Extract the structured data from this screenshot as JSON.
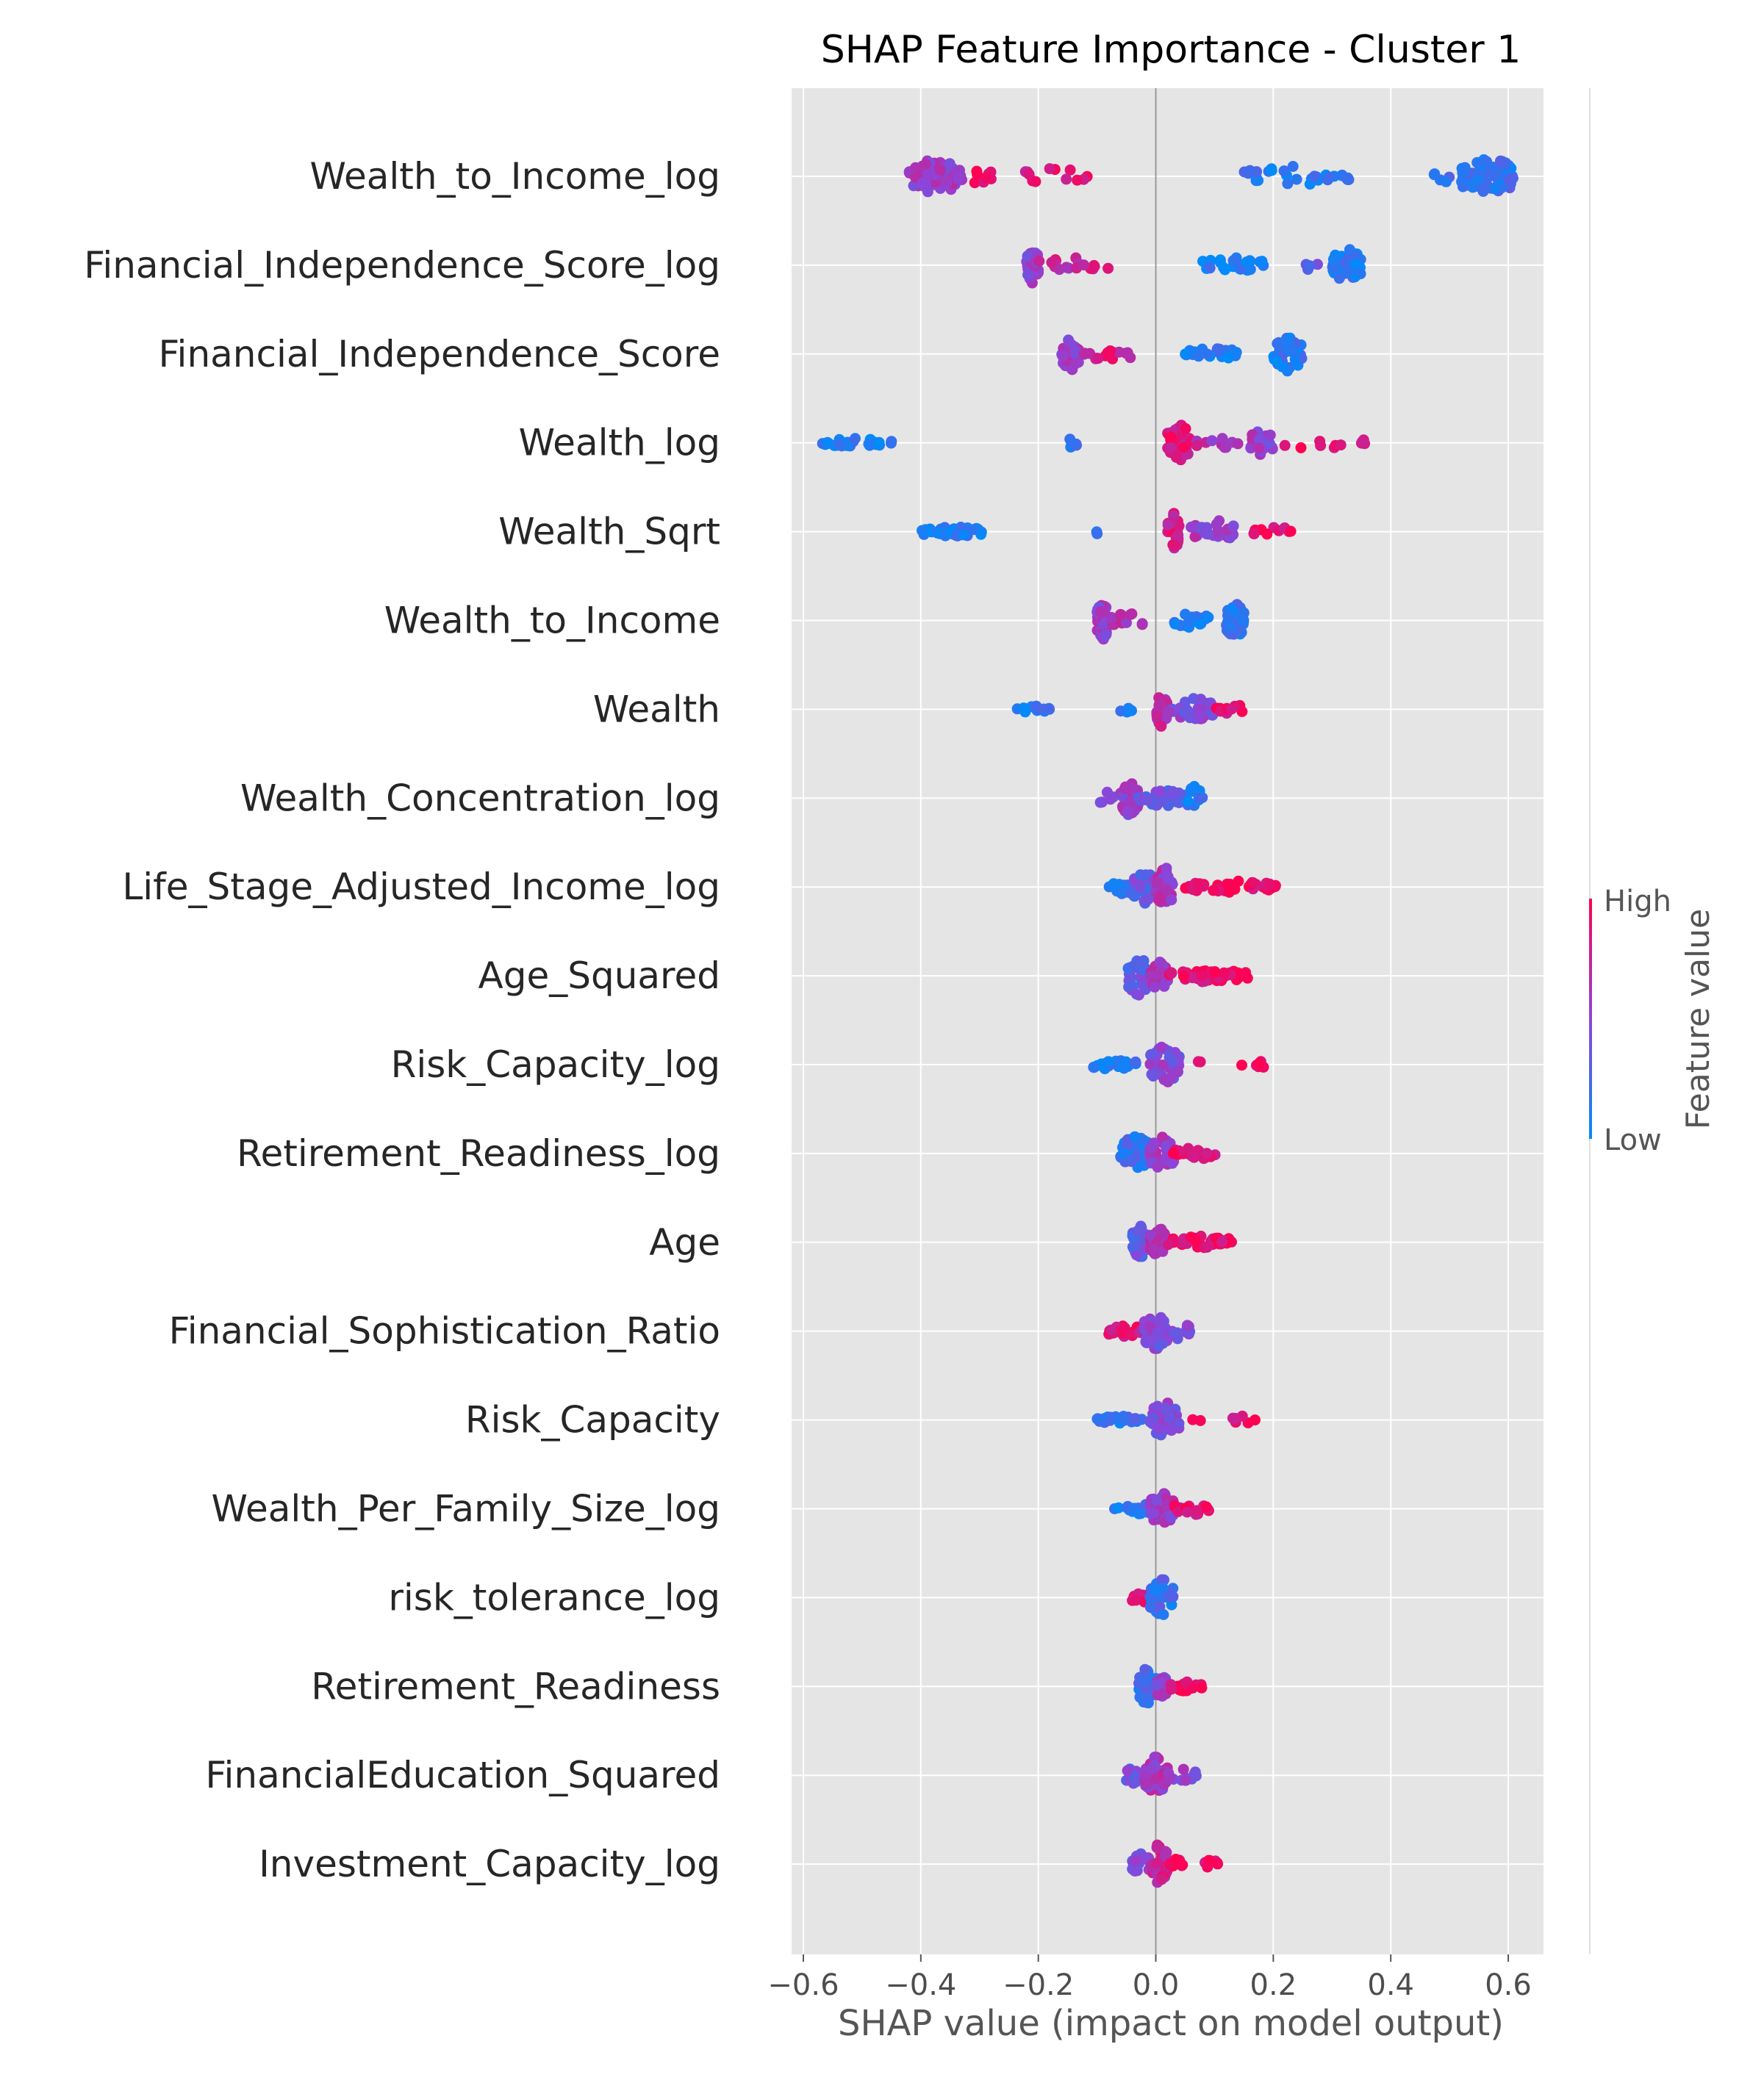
{
  "chart_data": {
    "type": "scatter",
    "subtype": "shap-beeswarm",
    "title": "SHAP Feature Importance - Cluster 1",
    "xlabel": "SHAP value (impact on model output)",
    "xlim": [
      -0.62,
      0.66
    ],
    "xticks": [
      -0.6,
      -0.4,
      -0.2,
      0.0,
      0.2,
      0.4,
      0.6
    ],
    "xtick_labels": [
      "−0.6",
      "−0.4",
      "−0.2",
      "0.0",
      "0.2",
      "0.4",
      "0.6"
    ],
    "grid": true,
    "background": "#e5e5e5",
    "colorbar": {
      "title": "Feature value",
      "high_label": "High",
      "low_label": "Low",
      "high_color": "#ff0052",
      "low_color": "#008bfb"
    },
    "features": [
      {
        "name": "Wealth_to_Income_log",
        "clusters": [
          {
            "x": [
              -0.42,
              -0.33
            ],
            "n": 70,
            "v": 0.55,
            "w": 0.42
          },
          {
            "x": [
              -0.32,
              -0.28
            ],
            "n": 8,
            "v": 0.9,
            "w": 0.2
          },
          {
            "x": [
              -0.25,
              -0.11
            ],
            "n": 12,
            "v": 0.85,
            "w": 0.2
          },
          {
            "x": [
              0.15,
              0.33
            ],
            "n": 30,
            "v": 0.12,
            "w": 0.25
          },
          {
            "x": [
              0.47,
              0.52
            ],
            "n": 5,
            "v": 0.25,
            "w": 0.15
          },
          {
            "x": [
              0.52,
              0.61
            ],
            "n": 60,
            "v": 0.18,
            "w": 0.48
          }
        ]
      },
      {
        "name": "Financial_Independence_Score_log",
        "clusters": [
          {
            "x": [
              -0.22,
              -0.2
            ],
            "n": 40,
            "v": 0.5,
            "w": 0.42
          },
          {
            "x": [
              -0.2,
              -0.07
            ],
            "n": 18,
            "v": 0.75,
            "w": 0.18
          },
          {
            "x": [
              0.08,
              0.19
            ],
            "n": 25,
            "v": 0.1,
            "w": 0.18
          },
          {
            "x": [
              0.25,
              0.28
            ],
            "n": 4,
            "v": 0.3,
            "w": 0.15
          },
          {
            "x": [
              0.3,
              0.35
            ],
            "n": 55,
            "v": 0.12,
            "w": 0.4
          }
        ]
      },
      {
        "name": "Financial_Independence_Score",
        "clusters": [
          {
            "x": [
              -0.16,
              -0.13
            ],
            "n": 40,
            "v": 0.55,
            "w": 0.42
          },
          {
            "x": [
              -0.13,
              -0.03
            ],
            "n": 15,
            "v": 0.8,
            "w": 0.15
          },
          {
            "x": [
              0.05,
              0.14
            ],
            "n": 22,
            "v": 0.1,
            "w": 0.15
          },
          {
            "x": [
              0.2,
              0.25
            ],
            "n": 45,
            "v": 0.12,
            "w": 0.4
          }
        ]
      },
      {
        "name": "Wealth_log",
        "clusters": [
          {
            "x": [
              -0.57,
              -0.45
            ],
            "n": 30,
            "v": 0.1,
            "w": 0.1
          },
          {
            "x": [
              -0.16,
              -0.13
            ],
            "n": 6,
            "v": 0.15,
            "w": 0.1
          },
          {
            "x": [
              0.02,
              0.06
            ],
            "n": 45,
            "v": 0.85,
            "w": 0.45
          },
          {
            "x": [
              0.06,
              0.14
            ],
            "n": 10,
            "v": 0.65,
            "w": 0.15
          },
          {
            "x": [
              0.16,
              0.2
            ],
            "n": 20,
            "v": 0.55,
            "w": 0.3
          },
          {
            "x": [
              0.2,
              0.36
            ],
            "n": 12,
            "v": 0.9,
            "w": 0.15
          }
        ]
      },
      {
        "name": "Wealth_Sqrt",
        "clusters": [
          {
            "x": [
              -0.4,
              -0.29
            ],
            "n": 35,
            "v": 0.1,
            "w": 0.12
          },
          {
            "x": [
              -0.11,
              -0.09
            ],
            "n": 2,
            "v": 0.1,
            "w": 0.1
          },
          {
            "x": [
              0.02,
              0.04
            ],
            "n": 35,
            "v": 0.8,
            "w": 0.45
          },
          {
            "x": [
              0.06,
              0.14
            ],
            "n": 25,
            "v": 0.55,
            "w": 0.28
          },
          {
            "x": [
              0.16,
              0.24
            ],
            "n": 12,
            "v": 0.9,
            "w": 0.12
          }
        ]
      },
      {
        "name": "Wealth_to_Income",
        "clusters": [
          {
            "x": [
              -0.1,
              -0.08
            ],
            "n": 40,
            "v": 0.55,
            "w": 0.45
          },
          {
            "x": [
              -0.08,
              -0.02
            ],
            "n": 12,
            "v": 0.6,
            "w": 0.2
          },
          {
            "x": [
              0.03,
              0.09
            ],
            "n": 20,
            "v": 0.15,
            "w": 0.18
          },
          {
            "x": [
              0.12,
              0.15
            ],
            "n": 45,
            "v": 0.15,
            "w": 0.45
          }
        ]
      },
      {
        "name": "Wealth",
        "clusters": [
          {
            "x": [
              -0.24,
              -0.18
            ],
            "n": 15,
            "v": 0.1,
            "w": 0.08
          },
          {
            "x": [
              -0.07,
              -0.04
            ],
            "n": 5,
            "v": 0.1,
            "w": 0.08
          },
          {
            "x": [
              0.0,
              0.02
            ],
            "n": 35,
            "v": 0.7,
            "w": 0.42
          },
          {
            "x": [
              0.02,
              0.1
            ],
            "n": 30,
            "v": 0.45,
            "w": 0.3
          },
          {
            "x": [
              0.1,
              0.16
            ],
            "n": 10,
            "v": 0.9,
            "w": 0.12
          }
        ]
      },
      {
        "name": "Wealth_Concentration_log",
        "clusters": [
          {
            "x": [
              -0.1,
              -0.07
            ],
            "n": 5,
            "v": 0.55,
            "w": 0.15
          },
          {
            "x": [
              -0.06,
              -0.03
            ],
            "n": 40,
            "v": 0.55,
            "w": 0.42
          },
          {
            "x": [
              -0.03,
              0.05
            ],
            "n": 35,
            "v": 0.35,
            "w": 0.2
          },
          {
            "x": [
              0.05,
              0.08
            ],
            "n": 15,
            "v": 0.12,
            "w": 0.3
          }
        ]
      },
      {
        "name": "Life_Stage_Adjusted_Income_log",
        "clusters": [
          {
            "x": [
              -0.08,
              -0.04
            ],
            "n": 12,
            "v": 0.15,
            "w": 0.18
          },
          {
            "x": [
              -0.04,
              0.0
            ],
            "n": 40,
            "v": 0.35,
            "w": 0.4
          },
          {
            "x": [
              0.0,
              0.03
            ],
            "n": 45,
            "v": 0.6,
            "w": 0.48
          },
          {
            "x": [
              0.05,
              0.21
            ],
            "n": 40,
            "v": 0.92,
            "w": 0.15
          }
        ]
      },
      {
        "name": "Age_Squared",
        "clusters": [
          {
            "x": [
              -0.05,
              -0.01
            ],
            "n": 50,
            "v": 0.35,
            "w": 0.45
          },
          {
            "x": [
              -0.01,
              0.02
            ],
            "n": 30,
            "v": 0.6,
            "w": 0.35
          },
          {
            "x": [
              0.02,
              0.16
            ],
            "n": 45,
            "v": 0.92,
            "w": 0.15
          }
        ]
      },
      {
        "name": "Risk_Capacity_log",
        "clusters": [
          {
            "x": [
              -0.11,
              -0.03
            ],
            "n": 25,
            "v": 0.15,
            "w": 0.15
          },
          {
            "x": [
              -0.01,
              0.04
            ],
            "n": 40,
            "v": 0.45,
            "w": 0.45
          },
          {
            "x": [
              0.07,
              0.08
            ],
            "n": 2,
            "v": 0.92,
            "w": 0.1
          },
          {
            "x": [
              0.14,
              0.19
            ],
            "n": 7,
            "v": 0.9,
            "w": 0.1
          }
        ]
      },
      {
        "name": "Retirement_Readiness_log",
        "clusters": [
          {
            "x": [
              -0.06,
              -0.01
            ],
            "n": 55,
            "v": 0.18,
            "w": 0.45
          },
          {
            "x": [
              -0.01,
              0.03
            ],
            "n": 40,
            "v": 0.55,
            "w": 0.42
          },
          {
            "x": [
              0.03,
              0.11
            ],
            "n": 22,
            "v": 0.92,
            "w": 0.15
          }
        ]
      },
      {
        "name": "Age",
        "clusters": [
          {
            "x": [
              -0.04,
              -0.01
            ],
            "n": 40,
            "v": 0.35,
            "w": 0.4
          },
          {
            "x": [
              -0.01,
              0.02
            ],
            "n": 30,
            "v": 0.65,
            "w": 0.35
          },
          {
            "x": [
              0.02,
              0.13
            ],
            "n": 40,
            "v": 0.92,
            "w": 0.15
          }
        ]
      },
      {
        "name": "Financial_Sophistication_Ratio",
        "clusters": [
          {
            "x": [
              -0.08,
              -0.02
            ],
            "n": 30,
            "v": 0.88,
            "w": 0.15
          },
          {
            "x": [
              -0.02,
              0.02
            ],
            "n": 40,
            "v": 0.45,
            "w": 0.45
          },
          {
            "x": [
              0.02,
              0.06
            ],
            "n": 12,
            "v": 0.4,
            "w": 0.2
          }
        ]
      },
      {
        "name": "Risk_Capacity",
        "clusters": [
          {
            "x": [
              -0.1,
              -0.02
            ],
            "n": 25,
            "v": 0.15,
            "w": 0.1
          },
          {
            "x": [
              -0.01,
              0.04
            ],
            "n": 45,
            "v": 0.45,
            "w": 0.45
          },
          {
            "x": [
              0.06,
              0.08
            ],
            "n": 2,
            "v": 0.92,
            "w": 0.1
          },
          {
            "x": [
              0.13,
              0.17
            ],
            "n": 6,
            "v": 0.9,
            "w": 0.1
          }
        ]
      },
      {
        "name": "Wealth_Per_Family_Size_log",
        "clusters": [
          {
            "x": [
              -0.08,
              -0.06
            ],
            "n": 2,
            "v": 0.1,
            "w": 0.1
          },
          {
            "x": [
              -0.05,
              -0.01
            ],
            "n": 20,
            "v": 0.15,
            "w": 0.15
          },
          {
            "x": [
              -0.01,
              0.03
            ],
            "n": 45,
            "v": 0.55,
            "w": 0.45
          },
          {
            "x": [
              0.03,
              0.09
            ],
            "n": 15,
            "v": 0.9,
            "w": 0.15
          }
        ]
      },
      {
        "name": "risk_tolerance_log",
        "clusters": [
          {
            "x": [
              -0.04,
              -0.01
            ],
            "n": 15,
            "v": 0.85,
            "w": 0.15
          },
          {
            "x": [
              -0.01,
              0.03
            ],
            "n": 40,
            "v": 0.2,
            "w": 0.45
          }
        ]
      },
      {
        "name": "Retirement_Readiness",
        "clusters": [
          {
            "x": [
              -0.03,
              0.0
            ],
            "n": 40,
            "v": 0.2,
            "w": 0.45
          },
          {
            "x": [
              0.0,
              0.02
            ],
            "n": 20,
            "v": 0.5,
            "w": 0.3
          },
          {
            "x": [
              0.02,
              0.08
            ],
            "n": 18,
            "v": 0.92,
            "w": 0.12
          }
        ]
      },
      {
        "name": "FinancialEducation_Squared",
        "clusters": [
          {
            "x": [
              -0.06,
              -0.02
            ],
            "n": 12,
            "v": 0.4,
            "w": 0.2
          },
          {
            "x": [
              -0.02,
              0.02
            ],
            "n": 40,
            "v": 0.6,
            "w": 0.45
          },
          {
            "x": [
              0.02,
              0.07
            ],
            "n": 12,
            "v": 0.5,
            "w": 0.15
          }
        ]
      },
      {
        "name": "Investment_Capacity_log",
        "clusters": [
          {
            "x": [
              -0.04,
              -0.01
            ],
            "n": 25,
            "v": 0.45,
            "w": 0.25
          },
          {
            "x": [
              -0.01,
              0.02
            ],
            "n": 40,
            "v": 0.75,
            "w": 0.48
          },
          {
            "x": [
              0.02,
              0.05
            ],
            "n": 8,
            "v": 0.9,
            "w": 0.12
          },
          {
            "x": [
              0.07,
              0.12
            ],
            "n": 8,
            "v": 0.92,
            "w": 0.12
          }
        ]
      }
    ]
  }
}
